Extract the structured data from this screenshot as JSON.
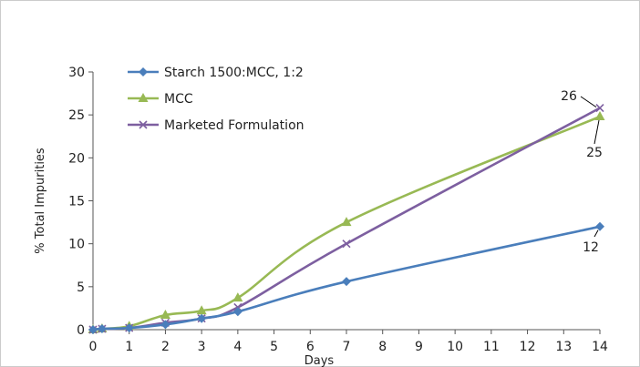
{
  "chart_data": {
    "type": "line",
    "xlabel": "Days",
    "ylabel": "% Total Impurities",
    "xlim": [
      0,
      14
    ],
    "ylim": [
      0,
      30
    ],
    "x_ticks": [
      0,
      1,
      2,
      3,
      4,
      5,
      6,
      7,
      8,
      9,
      10,
      11,
      12,
      13,
      14
    ],
    "y_ticks": [
      0,
      5,
      10,
      15,
      20,
      25,
      30
    ],
    "grid": false,
    "legend_position": "top-left",
    "series": [
      {
        "name": "Starch 1500:MCC, 1:2",
        "color": "#4a7ebb",
        "marker": "diamond",
        "points": [
          [
            0,
            0
          ],
          [
            0.25,
            0.1
          ],
          [
            1,
            0.2
          ],
          [
            2,
            0.6
          ],
          [
            3,
            1.3
          ],
          [
            4,
            2.1
          ],
          [
            7,
            5.6
          ],
          [
            14,
            12
          ]
        ]
      },
      {
        "name": "MCC",
        "color": "#98b954",
        "marker": "triangle",
        "points": [
          [
            0,
            0
          ],
          [
            0.25,
            0.1
          ],
          [
            1,
            0.4
          ],
          [
            2,
            1.7
          ],
          [
            3,
            2.2
          ],
          [
            4,
            3.7
          ],
          [
            7,
            12.5
          ],
          [
            14,
            24.8
          ]
        ]
      },
      {
        "name": "Marketed Formulation",
        "color": "#7d5fa0",
        "marker": "x",
        "points": [
          [
            0,
            0
          ],
          [
            0.25,
            0.1
          ],
          [
            1,
            0.2
          ],
          [
            2,
            0.8
          ],
          [
            3,
            1.3
          ],
          [
            4,
            2.6
          ],
          [
            7,
            10
          ],
          [
            14,
            25.8
          ]
        ]
      }
    ],
    "annotations": [
      {
        "text": "26",
        "x": 14,
        "y": 25.8,
        "series": "Marketed Formulation"
      },
      {
        "text": "25",
        "x": 14,
        "y": 24.8,
        "series": "MCC"
      },
      {
        "text": "12",
        "x": 14,
        "y": 12,
        "series": "Starch 1500:MCC, 1:2"
      }
    ]
  }
}
